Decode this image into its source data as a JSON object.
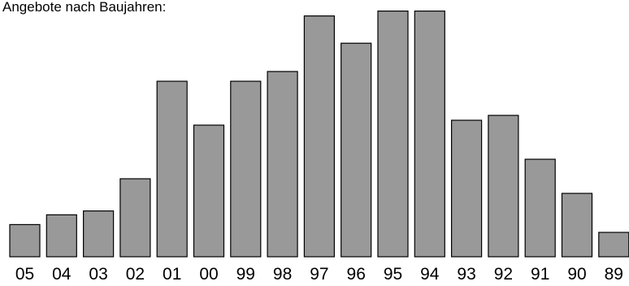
{
  "chart_data": {
    "type": "bar",
    "title": "Angebote nach Baujahren:",
    "xlabel": "",
    "ylabel": "",
    "categories": [
      "05",
      "04",
      "03",
      "02",
      "01",
      "00",
      "99",
      "98",
      "97",
      "96",
      "95",
      "94",
      "93",
      "92",
      "91",
      "90",
      "89"
    ],
    "values": [
      33,
      43,
      47,
      80,
      180,
      135,
      180,
      190,
      247,
      219,
      252,
      252,
      140,
      145,
      100,
      65,
      25
    ],
    "ylim": [
      0,
      260
    ],
    "grid": false,
    "legend": "none",
    "colors": {
      "bar_fill": "#999999",
      "bar_stroke": "#000000"
    }
  }
}
